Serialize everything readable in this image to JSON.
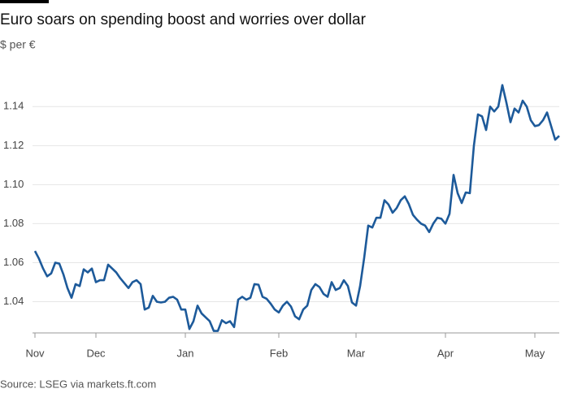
{
  "chart_data": {
    "type": "line",
    "title": "Euro soars on spending boost and worries over dollar",
    "subtitle": "$ per €",
    "source": "Source: LSEG via markets.ft.com",
    "categories": [
      "Nov",
      null,
      null,
      null,
      null,
      null,
      null,
      null,
      null,
      null,
      null,
      null,
      null,
      null,
      null,
      "Dec",
      null,
      null,
      null,
      null,
      null,
      null,
      null,
      null,
      null,
      null,
      null,
      null,
      null,
      null,
      null,
      null,
      null,
      null,
      null,
      null,
      null,
      "Jan",
      null,
      null,
      null,
      null,
      null,
      null,
      null,
      null,
      null,
      null,
      null,
      null,
      null,
      null,
      null,
      null,
      null,
      null,
      null,
      null,
      null,
      null,
      "Feb",
      null,
      null,
      null,
      null,
      null,
      null,
      null,
      null,
      null,
      null,
      null,
      null,
      null,
      null,
      null,
      null,
      null,
      null,
      "Mar",
      null,
      null,
      null,
      null,
      null,
      null,
      null,
      null,
      null,
      null,
      null,
      null,
      null,
      null,
      null,
      null,
      null,
      null,
      null,
      null,
      null,
      "Apr",
      null,
      null,
      null,
      null,
      null,
      null,
      null,
      null,
      null,
      null,
      null,
      null,
      null,
      null,
      null,
      null,
      null,
      null,
      null,
      null,
      null,
      "May",
      null,
      null,
      null,
      null,
      null,
      null
    ],
    "series": [
      {
        "color": "#1d5a9a",
        "values": [
          1.066,
          1.062,
          1.057,
          1.053,
          1.0545,
          1.06,
          1.0595,
          1.054,
          1.047,
          1.042,
          1.049,
          1.048,
          1.0566,
          1.055,
          1.057,
          1.05,
          1.051,
          1.051,
          1.059,
          1.057,
          1.055,
          1.052,
          1.0495,
          1.047,
          1.05,
          1.051,
          1.049,
          1.036,
          1.037,
          1.043,
          1.04,
          1.0396,
          1.04,
          1.042,
          1.0425,
          1.041,
          1.036,
          1.036,
          1.026,
          1.03,
          1.038,
          1.034,
          1.032,
          1.03,
          1.025,
          1.025,
          1.0305,
          1.029,
          1.03,
          1.027,
          1.041,
          1.0425,
          1.041,
          1.042,
          1.049,
          1.0487,
          1.0425,
          1.0415,
          1.039,
          1.036,
          1.0345,
          1.038,
          1.04,
          1.0375,
          1.0325,
          1.031,
          1.036,
          1.038,
          1.046,
          1.049,
          1.0475,
          1.044,
          1.0425,
          1.05,
          1.046,
          1.047,
          1.051,
          1.048,
          1.0396,
          1.038,
          1.048,
          1.0624,
          1.079,
          1.078,
          1.083,
          1.083,
          1.092,
          1.0898,
          1.0856,
          1.088,
          1.092,
          1.094,
          1.09,
          1.0845,
          1.082,
          1.08,
          1.079,
          1.0757,
          1.08,
          1.083,
          1.0825,
          1.08,
          1.085,
          1.105,
          1.0956,
          1.0906,
          1.096,
          1.0956,
          1.12,
          1.136,
          1.135,
          1.128,
          1.14,
          1.1375,
          1.14,
          1.151,
          1.142,
          1.132,
          1.139,
          1.137,
          1.143,
          1.14,
          1.133,
          1.13,
          1.1305,
          1.133,
          1.137,
          1.13,
          1.123,
          1.125
        ]
      }
    ],
    "ylim": [
      1.024,
      1.158
    ],
    "yticks": [
      1.04,
      1.06,
      1.08,
      {
        "value": 1.1,
        "label": "1.10"
      },
      1.12,
      1.14
    ],
    "grid": true
  }
}
